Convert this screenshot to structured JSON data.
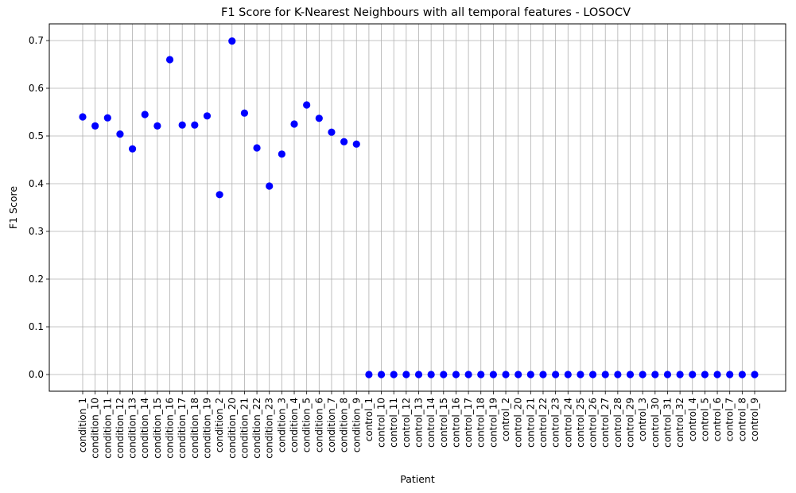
{
  "chart_data": {
    "type": "scatter",
    "title": "F1 Score for K-Nearest Neighbours with all temporal features - LOSOCV",
    "xlabel": "Patient",
    "ylabel": "F1 Score",
    "ylim": [
      -0.035,
      0.735
    ],
    "yticks": [
      0.0,
      0.1,
      0.2,
      0.3,
      0.4,
      0.5,
      0.6,
      0.7
    ],
    "ytick_labels": [
      "0.0",
      "0.1",
      "0.2",
      "0.3",
      "0.4",
      "0.5",
      "0.6",
      "0.7"
    ],
    "grid": true,
    "marker_color": "#0000ff",
    "categories": [
      "condition_1",
      "condition_10",
      "condition_11",
      "condition_12",
      "condition_13",
      "condition_14",
      "condition_15",
      "condition_16",
      "condition_17",
      "condition_18",
      "condition_19",
      "condition_2",
      "condition_20",
      "condition_21",
      "condition_22",
      "condition_23",
      "condition_3",
      "condition_4",
      "condition_5",
      "condition_6",
      "condition_7",
      "condition_8",
      "condition_9",
      "control_1",
      "control_10",
      "control_11",
      "control_12",
      "control_13",
      "control_14",
      "control_15",
      "control_16",
      "control_17",
      "control_18",
      "control_19",
      "control_2",
      "control_20",
      "control_21",
      "control_22",
      "control_23",
      "control_24",
      "control_25",
      "control_26",
      "control_27",
      "control_28",
      "control_29",
      "control_3",
      "control_30",
      "control_31",
      "control_32",
      "control_4",
      "control_5",
      "control_6",
      "control_7",
      "control_8",
      "control_9"
    ],
    "values": [
      0.54,
      0.521,
      0.538,
      0.504,
      0.473,
      0.545,
      0.521,
      0.66,
      0.523,
      0.523,
      0.542,
      0.377,
      0.699,
      0.548,
      0.475,
      0.395,
      0.462,
      0.525,
      0.565,
      0.537,
      0.508,
      0.488,
      0.483,
      0,
      0,
      0,
      0,
      0,
      0,
      0,
      0,
      0,
      0,
      0,
      0,
      0,
      0,
      0,
      0,
      0,
      0,
      0,
      0,
      0,
      0,
      0,
      0,
      0,
      0,
      0,
      0,
      0,
      0,
      0,
      0
    ]
  }
}
